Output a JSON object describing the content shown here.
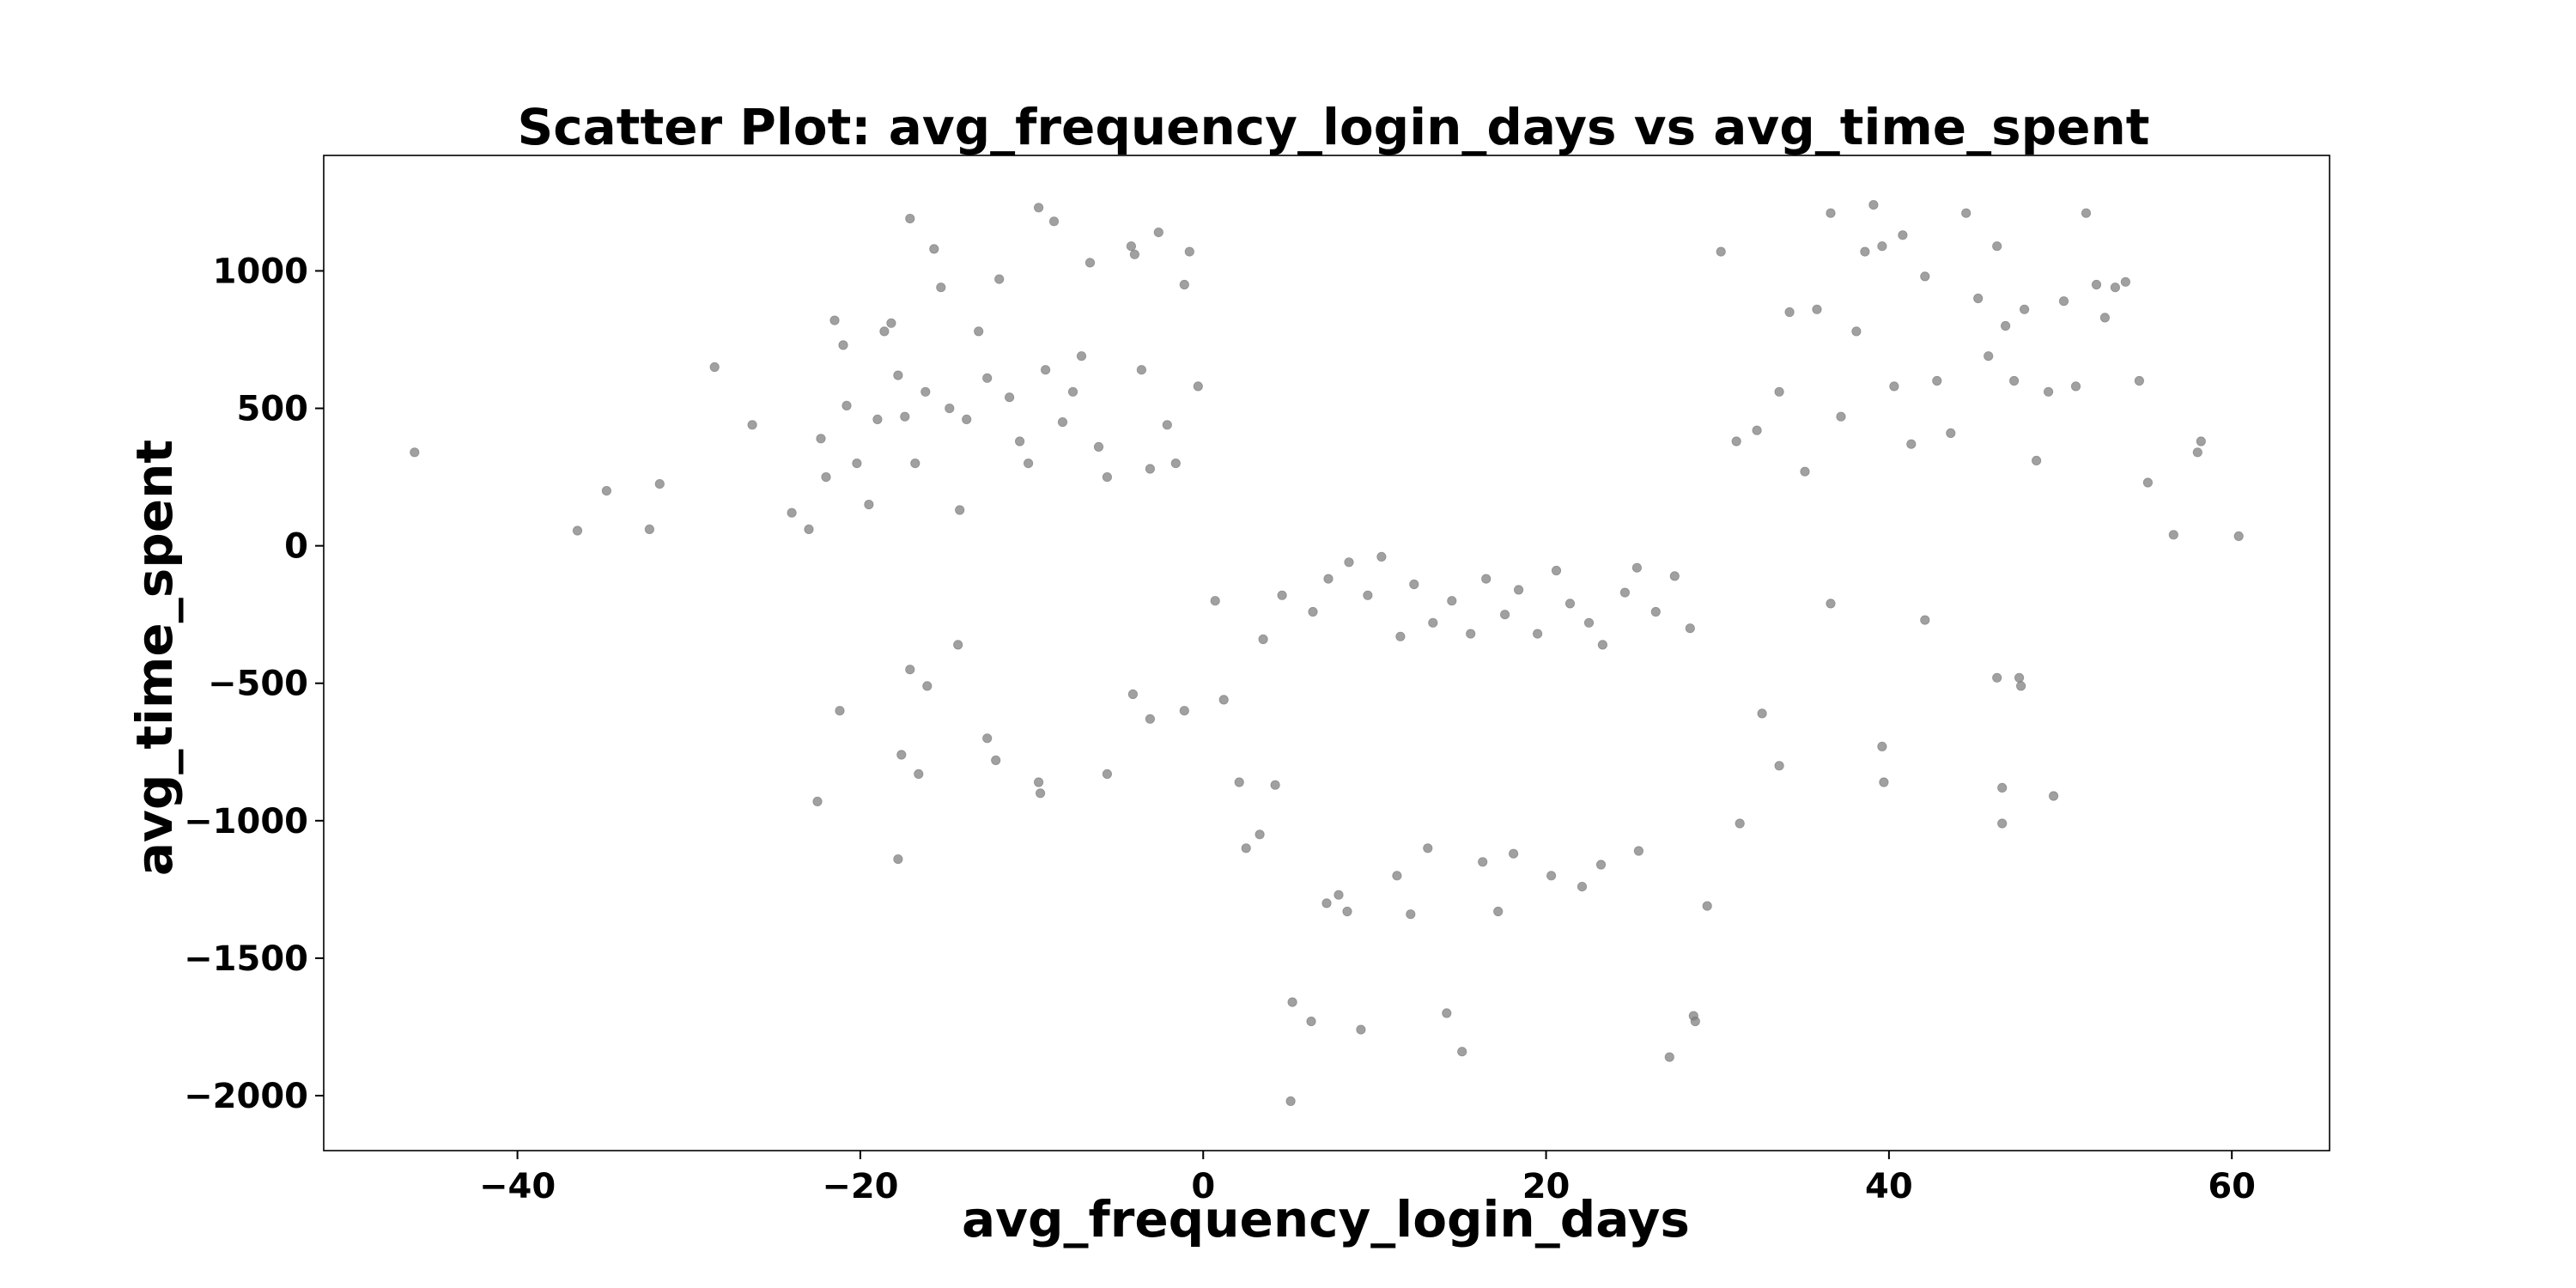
{
  "chart_data": {
    "type": "scatter",
    "title": "Scatter Plot: avg_frequency_login_days vs avg_time_spent",
    "xlabel": "avg_frequency_login_days",
    "ylabel": "avg_time_spent",
    "xlim": [
      -51.3,
      65.7
    ],
    "ylim": [
      -2200,
      1420
    ],
    "xticks": [
      -40,
      -20,
      0,
      20,
      40,
      60
    ],
    "xtick_labels": [
      "−40",
      "−20",
      "0",
      "20",
      "40",
      "60"
    ],
    "yticks": [
      1000,
      500,
      0,
      -500,
      -1000,
      -1500,
      -2000
    ],
    "ytick_labels": [
      "1000",
      "500",
      "0",
      "−500",
      "−1000",
      "−1500",
      "−2000"
    ],
    "grid": false,
    "legend": "none",
    "point_color": "#808080",
    "series": [
      {
        "points": [
          [
            -46,
            340
          ],
          [
            -36.5,
            55
          ],
          [
            -34.8,
            200
          ],
          [
            -32.3,
            60
          ],
          [
            -31.7,
            225
          ],
          [
            -28.5,
            650
          ],
          [
            -26.3,
            440
          ],
          [
            -24,
            120
          ],
          [
            -23,
            60
          ],
          [
            -22.3,
            390
          ],
          [
            -22,
            250
          ],
          [
            -21.5,
            820
          ],
          [
            -21,
            730
          ],
          [
            -20.8,
            510
          ],
          [
            -20.2,
            300
          ],
          [
            -19.5,
            150
          ],
          [
            -19,
            460
          ],
          [
            -18.6,
            780
          ],
          [
            -18.2,
            810
          ],
          [
            -17.8,
            620
          ],
          [
            -17.4,
            470
          ],
          [
            -17.1,
            1190
          ],
          [
            -16.8,
            300
          ],
          [
            -16.2,
            560
          ],
          [
            -15.7,
            1080
          ],
          [
            -15.3,
            940
          ],
          [
            -14.8,
            500
          ],
          [
            -14.2,
            130
          ],
          [
            -13.8,
            460
          ],
          [
            -13.1,
            780
          ],
          [
            -12.6,
            610
          ],
          [
            -11.9,
            970
          ],
          [
            -11.3,
            540
          ],
          [
            -10.7,
            380
          ],
          [
            -10.2,
            300
          ],
          [
            -9.6,
            1230
          ],
          [
            -9.2,
            640
          ],
          [
            -8.7,
            1180
          ],
          [
            -8.2,
            450
          ],
          [
            -7.6,
            560
          ],
          [
            -7.1,
            690
          ],
          [
            -6.6,
            1030
          ],
          [
            -6.1,
            360
          ],
          [
            -5.6,
            250
          ],
          [
            -4.2,
            1090
          ],
          [
            -4.0,
            1060
          ],
          [
            -3.6,
            640
          ],
          [
            -3.1,
            280
          ],
          [
            -2.6,
            1140
          ],
          [
            -2.1,
            440
          ],
          [
            -1.6,
            300
          ],
          [
            -1.1,
            950
          ],
          [
            -0.8,
            1070
          ],
          [
            -0.3,
            580
          ],
          [
            -22.5,
            -930
          ],
          [
            -21.2,
            -600
          ],
          [
            -17.8,
            -1140
          ],
          [
            -17.6,
            -760
          ],
          [
            -17.1,
            -450
          ],
          [
            -16.6,
            -830
          ],
          [
            -16.1,
            -510
          ],
          [
            -14.3,
            -360
          ],
          [
            -12.6,
            -700
          ],
          [
            -12.1,
            -780
          ],
          [
            -9.6,
            -860
          ],
          [
            -9.5,
            -900
          ],
          [
            -5.6,
            -830
          ],
          [
            -4.1,
            -540
          ],
          [
            -3.1,
            -630
          ],
          [
            -1.1,
            -600
          ],
          [
            30.2,
            1070
          ],
          [
            31.1,
            380
          ],
          [
            32.3,
            420
          ],
          [
            33.6,
            560
          ],
          [
            34.2,
            850
          ],
          [
            35.1,
            270
          ],
          [
            35.8,
            860
          ],
          [
            36.6,
            1210
          ],
          [
            37.2,
            470
          ],
          [
            38.1,
            780
          ],
          [
            38.6,
            1070
          ],
          [
            39.1,
            1240
          ],
          [
            39.6,
            1090
          ],
          [
            40.3,
            580
          ],
          [
            40.8,
            1130
          ],
          [
            41.3,
            370
          ],
          [
            42.1,
            980
          ],
          [
            42.8,
            600
          ],
          [
            43.6,
            410
          ],
          [
            44.5,
            1210
          ],
          [
            45.2,
            900
          ],
          [
            45.8,
            690
          ],
          [
            46.3,
            1090
          ],
          [
            46.8,
            800
          ],
          [
            47.3,
            600
          ],
          [
            47.9,
            860
          ],
          [
            48.6,
            310
          ],
          [
            49.3,
            560
          ],
          [
            50.2,
            890
          ],
          [
            50.9,
            580
          ],
          [
            51.5,
            1210
          ],
          [
            52.1,
            950
          ],
          [
            52.6,
            830
          ],
          [
            53.2,
            940
          ],
          [
            53.8,
            960
          ],
          [
            54.6,
            600
          ],
          [
            55.1,
            230
          ],
          [
            58.2,
            380
          ],
          [
            58.0,
            340
          ],
          [
            56.6,
            40
          ],
          [
            60.4,
            35
          ],
          [
            31.3,
            -1010
          ],
          [
            32.6,
            -610
          ],
          [
            33.6,
            -800
          ],
          [
            36.6,
            -210
          ],
          [
            39.6,
            -730
          ],
          [
            39.7,
            -860
          ],
          [
            42.1,
            -270
          ],
          [
            46.3,
            -480
          ],
          [
            46.6,
            -1010
          ],
          [
            46.6,
            -880
          ],
          [
            47.6,
            -480
          ],
          [
            47.7,
            -510
          ],
          [
            49.6,
            -910
          ],
          [
            5.2,
            -1660
          ],
          [
            6.3,
            -1730
          ],
          [
            7.2,
            -1300
          ],
          [
            7.9,
            -1270
          ],
          [
            8.4,
            -1330
          ],
          [
            9.2,
            -1760
          ],
          [
            11.3,
            -1200
          ],
          [
            12.1,
            -1340
          ],
          [
            13.1,
            -1100
          ],
          [
            14.2,
            -1700
          ],
          [
            15.1,
            -1840
          ],
          [
            16.3,
            -1150
          ],
          [
            17.2,
            -1330
          ],
          [
            18.1,
            -1120
          ],
          [
            20.3,
            -1200
          ],
          [
            22.1,
            -1240
          ],
          [
            23.2,
            -1160
          ],
          [
            25.4,
            -1110
          ],
          [
            27.2,
            -1860
          ],
          [
            28.6,
            -1710
          ],
          [
            28.7,
            -1730
          ],
          [
            29.4,
            -1310
          ],
          [
            5.1,
            -2020
          ],
          [
            2.5,
            -1100
          ],
          [
            3.3,
            -1050
          ],
          [
            4.2,
            -870
          ],
          [
            0.7,
            -200
          ],
          [
            1.2,
            -560
          ],
          [
            2.1,
            -860
          ],
          [
            3.5,
            -340
          ],
          [
            4.6,
            -180
          ],
          [
            6.4,
            -240
          ],
          [
            7.3,
            -120
          ],
          [
            8.5,
            -60
          ],
          [
            9.6,
            -180
          ],
          [
            10.4,
            -40
          ],
          [
            11.5,
            -330
          ],
          [
            12.3,
            -140
          ],
          [
            13.4,
            -280
          ],
          [
            14.5,
            -200
          ],
          [
            15.6,
            -320
          ],
          [
            16.5,
            -120
          ],
          [
            17.6,
            -250
          ],
          [
            18.4,
            -160
          ],
          [
            19.5,
            -320
          ],
          [
            20.6,
            -90
          ],
          [
            21.4,
            -210
          ],
          [
            22.5,
            -280
          ],
          [
            23.3,
            -360
          ],
          [
            24.6,
            -170
          ],
          [
            25.3,
            -80
          ],
          [
            26.4,
            -240
          ],
          [
            27.5,
            -110
          ],
          [
            28.4,
            -300
          ]
        ]
      }
    ]
  }
}
